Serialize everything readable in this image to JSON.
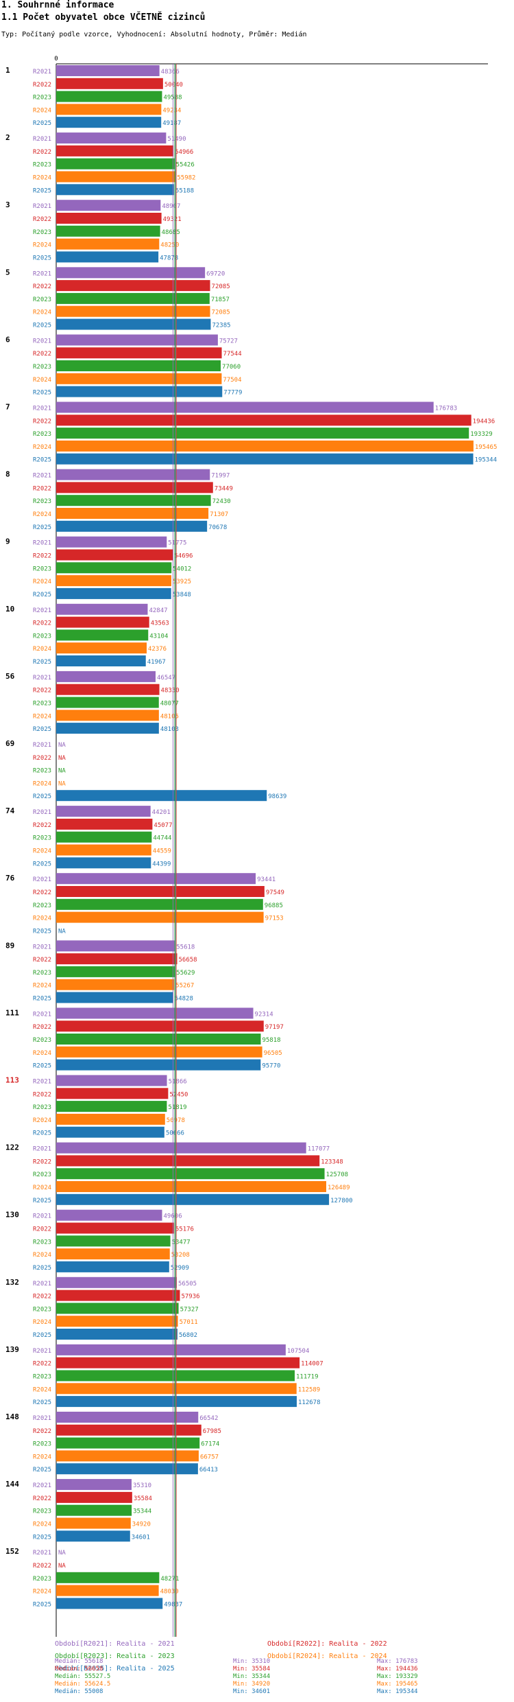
{
  "title": "1. Souhrnné informace",
  "subtitle": "1.1 Počet obyvatel obce VČETNĚ cizinců",
  "description": "Typ: Počítaný podle vzorce, Vyhodnocení: Absolutní hodnoty, Průměr: Medián",
  "colors": {
    "R2021": "#9467bd",
    "R2022": "#d62728",
    "R2023": "#2ca02c",
    "R2024": "#ff7f0e",
    "R2025": "#1f77b4",
    "highlight_label": "#d62728"
  },
  "chart_data": {
    "type": "bar",
    "orientation": "horizontal",
    "xlim": [
      0,
      200000
    ],
    "zero_label": "0",
    "highlight_category": "113",
    "series_names": [
      "R2021",
      "R2022",
      "R2023",
      "R2024",
      "R2025"
    ],
    "categories": [
      "1",
      "2",
      "3",
      "5",
      "6",
      "7",
      "8",
      "9",
      "10",
      "56",
      "69",
      "74",
      "76",
      "89",
      "111",
      "113",
      "122",
      "130",
      "132",
      "139",
      "148",
      "144",
      "152"
    ],
    "values": [
      [
        48366,
        50040,
        49588,
        49234,
        49187
      ],
      [
        51490,
        54966,
        55426,
        55982,
        55188
      ],
      [
        48907,
        49321,
        48685,
        48250,
        47878
      ],
      [
        69720,
        72085,
        71857,
        72085,
        72385
      ],
      [
        75727,
        77544,
        77060,
        77504,
        77779
      ],
      [
        176783,
        194436,
        193329,
        195465,
        195344
      ],
      [
        71997,
        73449,
        72430,
        71307,
        70678
      ],
      [
        51775,
        54696,
        54012,
        53925,
        53848
      ],
      [
        42847,
        43563,
        43104,
        42376,
        41967
      ],
      [
        46547,
        48330,
        48077,
        48105,
        48103
      ],
      [
        null,
        null,
        null,
        null,
        98639
      ],
      [
        44201,
        45077,
        44744,
        44559,
        44399
      ],
      [
        93441,
        97549,
        96885,
        97153,
        null
      ],
      [
        55618,
        56658,
        55629,
        55267,
        54828
      ],
      [
        92314,
        97197,
        95818,
        96505,
        95770
      ],
      [
        51866,
        52450,
        51819,
        50978,
        50666
      ],
      [
        117077,
        123348,
        125708,
        126489,
        127800
      ],
      [
        49606,
        55176,
        53477,
        53208,
        52909
      ],
      [
        56505,
        57936,
        57327,
        57011,
        56802
      ],
      [
        107504,
        114007,
        111719,
        112589,
        112678
      ],
      [
        66542,
        67985,
        67174,
        66757,
        66413
      ],
      [
        35310,
        35584,
        35344,
        34920,
        34601
      ],
      [
        null,
        null,
        48271,
        48030,
        49837
      ]
    ],
    "na_label": "NA",
    "medians": [
      55618,
      56658,
      55527.5,
      55624.5,
      55008
    ],
    "legend_entries": [
      "Období[R2021]: Realita - 2021",
      "Období[R2022]: Realita - 2022",
      "Období[R2023]: Realita - 2023",
      "Období[R2024]: Realita - 2024",
      "Období[R2025]: Realita - 2025"
    ],
    "stats": [
      {
        "median": "Medián: 55618",
        "min": "Min: 35310",
        "max": "Max: 176783"
      },
      {
        "median": "Medián: 56658",
        "min": "Min: 35584",
        "max": "Max: 194436"
      },
      {
        "median": "Medián: 55527.5",
        "min": "Min: 35344",
        "max": "Max: 193329"
      },
      {
        "median": "Medián: 55624.5",
        "min": "Min: 34920",
        "max": "Max: 195465"
      },
      {
        "median": "Medián: 55008",
        "min": "Min: 34601",
        "max": "Max: 195344"
      }
    ]
  }
}
